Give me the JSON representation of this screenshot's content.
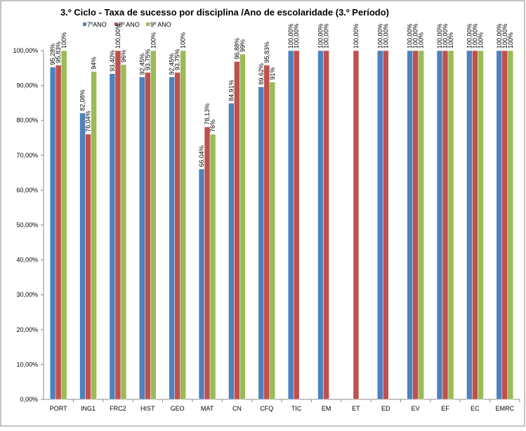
{
  "chart_data": {
    "type": "bar",
    "title": "3.º Ciclo - Taxa de sucesso por disciplina /Ano de escolaridade (3.º Período)",
    "categories": [
      "PORT",
      "ING1",
      "FRC2",
      "HIST",
      "GEO",
      "MAT",
      "CN",
      "CFQ",
      "TIC",
      "EM",
      "ET",
      "ED",
      "EV",
      "EF",
      "EC",
      "EMRC"
    ],
    "series": [
      {
        "name": "7ºANO",
        "color": "#4f81bd",
        "values": [
          95.28,
          82.08,
          93.4,
          92.45,
          92.45,
          66.04,
          84.91,
          89.62,
          100,
          100,
          null,
          100,
          100,
          100,
          100,
          100
        ],
        "value_labels": [
          "95,28%",
          "82,08%",
          "93,40%",
          "92,45%",
          "92,45%",
          "66,04%",
          "84,91%",
          "89,62%",
          "100,00%",
          "100,00%",
          null,
          "100,00%",
          "100,00%",
          "100,00%",
          "100,00%",
          "100,00%"
        ]
      },
      {
        "name": "8º ANO",
        "color": "#c0504d",
        "values": [
          95.83,
          76.04,
          100,
          93.75,
          93.75,
          78.13,
          96.88,
          95.83,
          100,
          100,
          100,
          100,
          100,
          100,
          100,
          100
        ],
        "value_labels": [
          "95,83%",
          "76,04%",
          "100,00%",
          "93,75%",
          "93,75%",
          "78,13%",
          "96,88%",
          "95,83%",
          "100,00%",
          "100,00%",
          "100,00%",
          "100,00%",
          "100,00%",
          "100,00%",
          "100,00%",
          "100,00%"
        ]
      },
      {
        "name": "9º ANO",
        "color": "#9bbb59",
        "values": [
          100,
          94,
          96,
          100,
          100,
          76,
          99,
          91,
          null,
          null,
          null,
          null,
          100,
          100,
          100,
          100
        ],
        "value_labels": [
          "100%",
          "94%",
          "96%",
          "100%",
          "100%",
          "76%",
          "99%",
          "91%",
          null,
          null,
          null,
          null,
          "100%",
          "100%",
          "100%",
          "100%"
        ]
      }
    ],
    "ylim": [
      0,
      100
    ],
    "yticks": [
      {
        "value": 0,
        "label": "0,00%"
      },
      {
        "value": 10,
        "label": "10,00%"
      },
      {
        "value": 20,
        "label": "20,00%"
      },
      {
        "value": 30,
        "label": "30,00%"
      },
      {
        "value": 40,
        "label": "40,00%"
      },
      {
        "value": 50,
        "label": "50,00%"
      },
      {
        "value": 60,
        "label": "60,00%"
      },
      {
        "value": 70,
        "label": "70,00%"
      },
      {
        "value": 80,
        "label": "80,00%"
      },
      {
        "value": 90,
        "label": "90,00%"
      },
      {
        "value": 100,
        "label": "100,00%"
      }
    ],
    "grid": false
  }
}
